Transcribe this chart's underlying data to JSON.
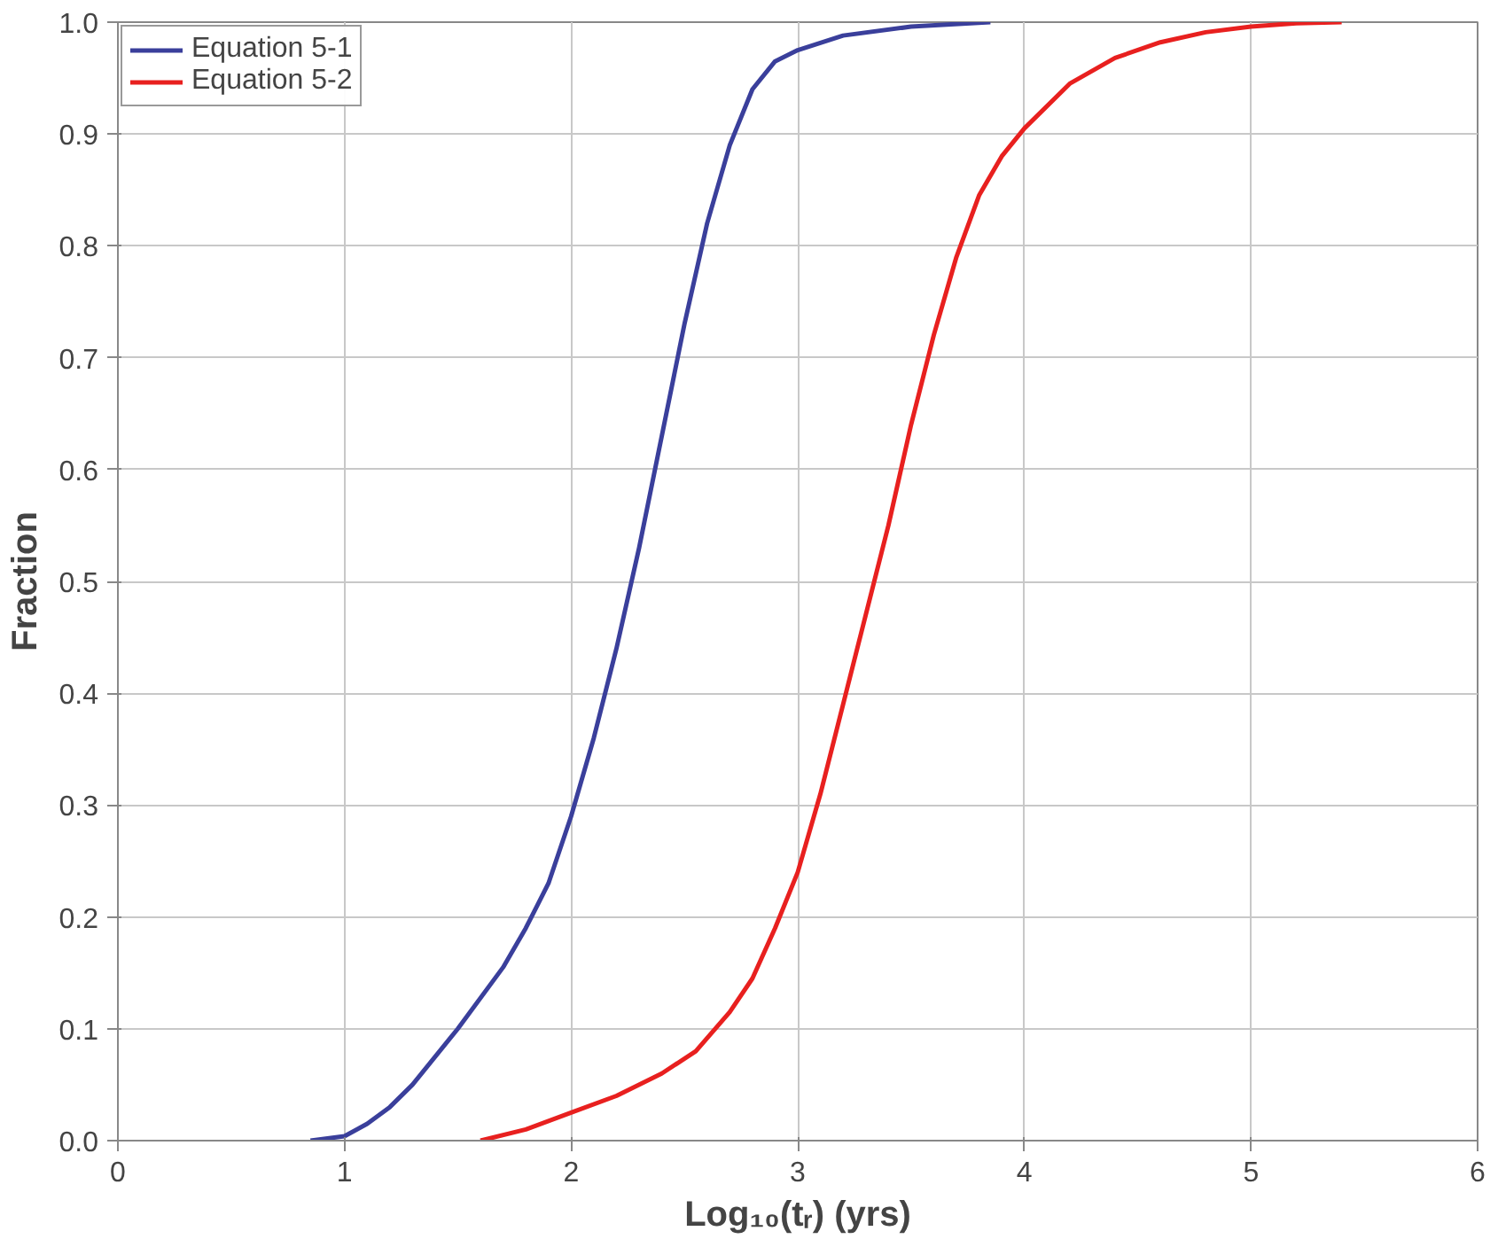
{
  "chart_data": {
    "type": "line",
    "xlabel": "Log₁₀(tᵣ) (yrs)",
    "ylabel": "Fraction",
    "xlim": [
      0,
      6
    ],
    "xticks": [
      0,
      1,
      2,
      3,
      4,
      5,
      6
    ],
    "ylim": [
      0,
      1
    ],
    "yticks": [
      {
        "value": 0,
        "label": "0.0"
      },
      {
        "value": 0.1,
        "label": "0.1"
      },
      {
        "value": 0.2,
        "label": "0.2"
      },
      {
        "value": 0.3,
        "label": "0.3"
      },
      {
        "value": 0.4,
        "label": "0.4"
      },
      {
        "value": 0.5,
        "label": "0.5"
      },
      {
        "value": 0.6,
        "label": "0.6"
      },
      {
        "value": 0.7,
        "label": "0.7"
      },
      {
        "value": 0.8,
        "label": "0.8"
      },
      {
        "value": 0.9,
        "label": "0.9"
      },
      {
        "value": 1,
        "label": "1.0"
      }
    ],
    "grid": true,
    "legend": "top left",
    "marker": "none",
    "line_style": "solid",
    "series": [
      {
        "name": "Equation 5-1",
        "color": "#3a3f9b",
        "x": [
          0.85,
          1.0,
          1.1,
          1.2,
          1.3,
          1.5,
          1.7,
          1.8,
          1.9,
          2.0,
          2.1,
          2.2,
          2.3,
          2.4,
          2.5,
          2.6,
          2.7,
          2.8,
          2.9,
          3.0,
          3.2,
          3.5,
          3.85
        ],
        "values": [
          0.0,
          0.004,
          0.015,
          0.03,
          0.05,
          0.1,
          0.155,
          0.19,
          0.23,
          0.29,
          0.36,
          0.44,
          0.53,
          0.63,
          0.73,
          0.82,
          0.89,
          0.94,
          0.965,
          0.975,
          0.988,
          0.996,
          1.0
        ]
      },
      {
        "name": "Equation 5-2",
        "color": "#e8201f",
        "x": [
          1.6,
          1.8,
          2.0,
          2.2,
          2.4,
          2.55,
          2.7,
          2.8,
          2.9,
          3.0,
          3.1,
          3.2,
          3.3,
          3.4,
          3.5,
          3.6,
          3.7,
          3.8,
          3.9,
          4.0,
          4.2,
          4.4,
          4.6,
          4.8,
          5.0,
          5.2,
          5.4
        ],
        "values": [
          0.0,
          0.01,
          0.025,
          0.04,
          0.06,
          0.08,
          0.115,
          0.145,
          0.19,
          0.24,
          0.31,
          0.39,
          0.47,
          0.55,
          0.64,
          0.72,
          0.79,
          0.845,
          0.88,
          0.905,
          0.945,
          0.968,
          0.982,
          0.991,
          0.996,
          0.999,
          1.0
        ]
      }
    ]
  }
}
